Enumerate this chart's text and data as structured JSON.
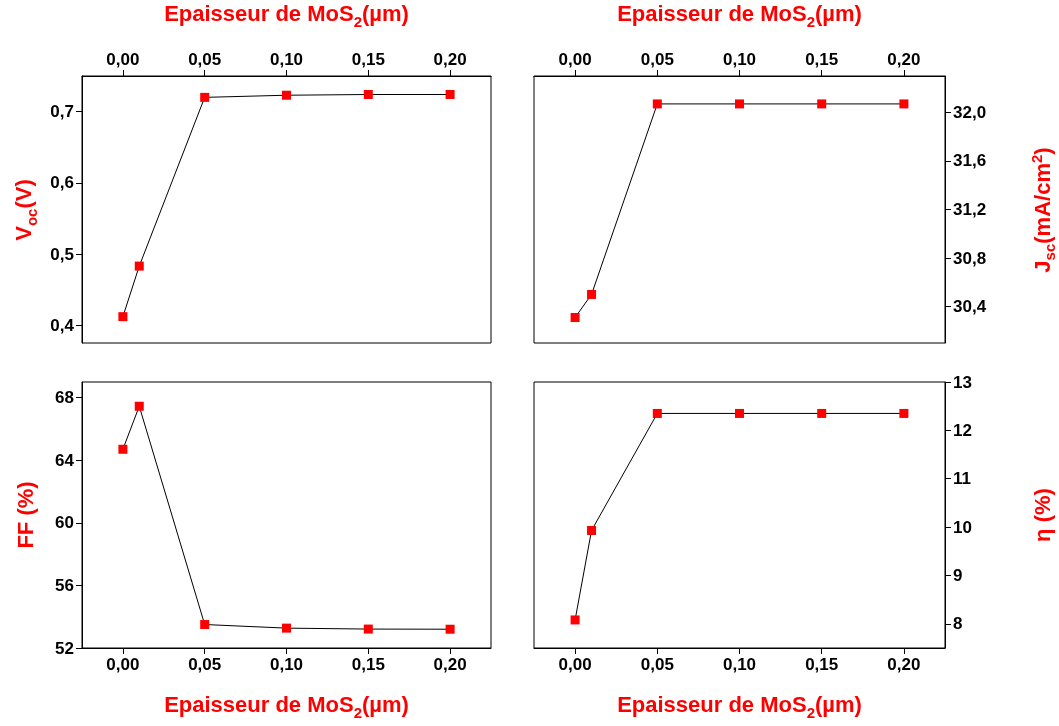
{
  "chart_data": [
    {
      "type": "line",
      "xlabel": "Epaisseur de MoS$_{2}$(µm)",
      "ylabel": "V$_{oc}$(V)",
      "x": [
        0,
        0.01,
        0.05,
        0.1,
        0.15,
        0.2
      ],
      "xlim": [
        -0.025,
        0.225
      ],
      "xticks": [
        {
          "value": 0,
          "label": "0,00"
        },
        {
          "value": 0.05,
          "label": "0,05"
        },
        {
          "value": 0.1,
          "label": "0,10"
        },
        {
          "value": 0.15,
          "label": "0,15"
        },
        {
          "value": 0.2,
          "label": "0,20"
        }
      ],
      "ylim": [
        0.375,
        0.75
      ],
      "yticks": [
        {
          "value": 0.4,
          "label": "0,4"
        },
        {
          "value": 0.5,
          "label": "0,5"
        },
        {
          "value": 0.6,
          "label": "0,6"
        },
        {
          "value": 0.7,
          "label": "0,7"
        }
      ],
      "series": [
        {
          "color": "#ff0000",
          "values": [
            0.412,
            0.483,
            0.72,
            0.723,
            0.724,
            0.724
          ]
        }
      ],
      "marker": "square",
      "line_style": "solid",
      "grid": false
    },
    {
      "type": "line",
      "xlabel": "Epaisseur de MoS$_{2}$(µm)",
      "y2label": "J$_{sc}$(mA/cm$^{2}$)",
      "x": [
        0,
        0.01,
        0.05,
        0.1,
        0.15,
        0.2
      ],
      "xlim": [
        -0.025,
        0.225
      ],
      "xticks": [
        {
          "value": 0,
          "label": "0,00"
        },
        {
          "value": 0.05,
          "label": "0,05"
        },
        {
          "value": 0.1,
          "label": "0,10"
        },
        {
          "value": 0.15,
          "label": "0,15"
        },
        {
          "value": 0.2,
          "label": "0,20"
        }
      ],
      "y2lim": [
        30.1,
        32.3
      ],
      "y2ticks": [
        {
          "value": 30.4,
          "label": "30,4"
        },
        {
          "value": 30.8,
          "label": "30,8"
        },
        {
          "value": 31.2,
          "label": "31,2"
        },
        {
          "value": 31.6,
          "label": "31,6"
        },
        {
          "value": 32,
          "label": "32,0"
        }
      ],
      "series": [
        {
          "color": "#ff0000",
          "axis": "y2",
          "values": [
            30.31,
            30.5,
            32.07,
            32.07,
            32.07,
            32.07
          ]
        }
      ],
      "marker": "square",
      "line_style": "solid",
      "grid": false
    },
    {
      "type": "line",
      "xlabel": "Epaisseur de MoS$_{2}$(µm)",
      "ylabel": "FF (%)",
      "x": [
        0,
        0.01,
        0.05,
        0.1,
        0.15,
        0.2
      ],
      "xlim": [
        -0.025,
        0.225
      ],
      "xticks": [
        {
          "value": 0,
          "label": "0,00"
        },
        {
          "value": 0.05,
          "label": "0,05"
        },
        {
          "value": 0.1,
          "label": "0,10"
        },
        {
          "value": 0.15,
          "label": "0,15"
        },
        {
          "value": 0.2,
          "label": "0,20"
        }
      ],
      "ylim": [
        52,
        69
      ],
      "yticks": [
        52,
        56,
        60,
        64,
        68
      ],
      "series": [
        {
          "color": "#ff0000",
          "values": [
            64.7,
            67.45,
            53.5,
            53.27,
            53.21,
            53.2
          ]
        }
      ],
      "marker": "square",
      "line_style": "solid",
      "grid": false
    },
    {
      "type": "line",
      "xlabel": "Epaisseur de MoS$_{2}$(µm)",
      "y2label": "η (%)",
      "x": [
        0,
        0.01,
        0.05,
        0.1,
        0.15,
        0.2
      ],
      "xlim": [
        -0.025,
        0.225
      ],
      "xticks": [
        {
          "value": 0,
          "label": "0,00"
        },
        {
          "value": 0.05,
          "label": "0,05"
        },
        {
          "value": 0.1,
          "label": "0,10"
        },
        {
          "value": 0.15,
          "label": "0,15"
        },
        {
          "value": 0.2,
          "label": "0,20"
        }
      ],
      "y2lim": [
        7.5,
        13
      ],
      "y2ticks": [
        8,
        9,
        10,
        11,
        12,
        13
      ],
      "series": [
        {
          "color": "#ff0000",
          "axis": "y2",
          "values": [
            8.08,
            9.93,
            12.35,
            12.35,
            12.35,
            12.35
          ]
        }
      ],
      "marker": "square",
      "line_style": "solid",
      "grid": false
    }
  ]
}
